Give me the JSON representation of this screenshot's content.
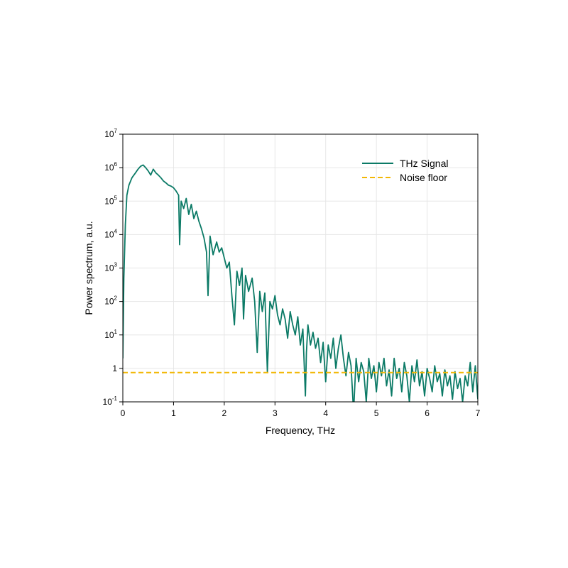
{
  "chart_data": {
    "type": "line",
    "xlabel": "Frequency, THz",
    "ylabel": "Power spectrum, a.u.",
    "xlim": [
      0,
      7
    ],
    "ylim": [
      0.1,
      10000000
    ],
    "yscale": "log",
    "grid": true,
    "legend_position": "top-right",
    "x_ticks": [
      "0",
      "1",
      "2",
      "3",
      "4",
      "5",
      "6",
      "7"
    ],
    "y_ticks": [
      {
        "value": 0.1,
        "base": "10",
        "exp": "-1"
      },
      {
        "value": 1,
        "base": "1",
        "exp": ""
      },
      {
        "value": 10,
        "base": "10",
        "exp": "1"
      },
      {
        "value": 100,
        "base": "10",
        "exp": "2"
      },
      {
        "value": 1000,
        "base": "10",
        "exp": "3"
      },
      {
        "value": 10000,
        "base": "10",
        "exp": "4"
      },
      {
        "value": 100000,
        "base": "10",
        "exp": "5"
      },
      {
        "value": 1000000,
        "base": "10",
        "exp": "6"
      },
      {
        "value": 10000000,
        "base": "10",
        "exp": "7"
      }
    ],
    "series": [
      {
        "name": "THz Signal",
        "color": "#0b7a66",
        "style": "solid",
        "x": [
          0,
          0.02,
          0.05,
          0.08,
          0.12,
          0.18,
          0.25,
          0.3,
          0.35,
          0.4,
          0.45,
          0.5,
          0.55,
          0.6,
          0.65,
          0.7,
          0.75,
          0.8,
          0.85,
          0.9,
          0.95,
          1.0,
          1.05,
          1.1,
          1.12,
          1.15,
          1.2,
          1.25,
          1.3,
          1.35,
          1.4,
          1.45,
          1.5,
          1.55,
          1.6,
          1.65,
          1.68,
          1.72,
          1.78,
          1.85,
          1.9,
          1.95,
          2.0,
          2.05,
          2.1,
          2.15,
          2.2,
          2.25,
          2.3,
          2.35,
          2.38,
          2.42,
          2.48,
          2.55,
          2.6,
          2.65,
          2.7,
          2.75,
          2.8,
          2.85,
          2.9,
          2.95,
          3.0,
          3.05,
          3.1,
          3.15,
          3.2,
          3.25,
          3.3,
          3.35,
          3.4,
          3.45,
          3.5,
          3.55,
          3.6,
          3.62,
          3.65,
          3.7,
          3.75,
          3.8,
          3.85,
          3.9,
          3.95,
          4.0,
          4.05,
          4.1,
          4.15,
          4.2,
          4.25,
          4.3,
          4.35,
          4.4,
          4.45,
          4.5,
          4.55,
          4.6,
          4.65,
          4.7,
          4.75,
          4.8,
          4.85,
          4.9,
          4.95,
          5.0,
          5.05,
          5.1,
          5.15,
          5.2,
          5.25,
          5.3,
          5.35,
          5.4,
          5.45,
          5.5,
          5.55,
          5.6,
          5.65,
          5.7,
          5.75,
          5.8,
          5.85,
          5.9,
          5.95,
          6.0,
          6.05,
          6.1,
          6.15,
          6.2,
          6.25,
          6.3,
          6.35,
          6.4,
          6.45,
          6.5,
          6.55,
          6.6,
          6.65,
          6.7,
          6.75,
          6.8,
          6.85,
          6.9,
          6.95,
          7.0
        ],
        "y": [
          2,
          500,
          20000,
          150000,
          300000,
          500000,
          700000,
          900000,
          1100000,
          1200000,
          1000000,
          800000,
          600000,
          900000,
          700000,
          600000,
          500000,
          400000,
          350000,
          300000,
          280000,
          250000,
          200000,
          150000,
          5000,
          100000,
          60000,
          120000,
          40000,
          80000,
          30000,
          50000,
          25000,
          15000,
          8000,
          3000,
          150,
          9000,
          2500,
          6000,
          3000,
          4000,
          2000,
          1000,
          1500,
          150,
          20,
          800,
          300,
          1000,
          30,
          600,
          200,
          500,
          100,
          3,
          200,
          50,
          180,
          0.8,
          100,
          60,
          150,
          40,
          20,
          60,
          30,
          8,
          50,
          20,
          10,
          35,
          5,
          15,
          0.15,
          3,
          20,
          5,
          12,
          4,
          8,
          1.5,
          6,
          0.4,
          5,
          2,
          8,
          1,
          4,
          10,
          2,
          0.6,
          3,
          1.2,
          0.05,
          2,
          0.4,
          1.5,
          0.8,
          0.1,
          2,
          0.5,
          1.2,
          0.2,
          1.5,
          0.6,
          2,
          0.3,
          0.9,
          0.15,
          2,
          0.5,
          1,
          0.2,
          1.5,
          0.6,
          0.1,
          1.2,
          0.4,
          1.8,
          0.3,
          0.8,
          0.15,
          1,
          0.5,
          0.2,
          1.2,
          0.4,
          0.7,
          0.15,
          0.9,
          0.3,
          0.6,
          0.12,
          0.8,
          0.25,
          0.5,
          0.1,
          0.6,
          0.3,
          1.5,
          0.2,
          1.2,
          0.12
        ]
      },
      {
        "name": "Noise floor",
        "color": "#f2b705",
        "style": "dashed",
        "x": [
          0,
          7
        ],
        "y": [
          0.75,
          0.75
        ]
      }
    ]
  }
}
